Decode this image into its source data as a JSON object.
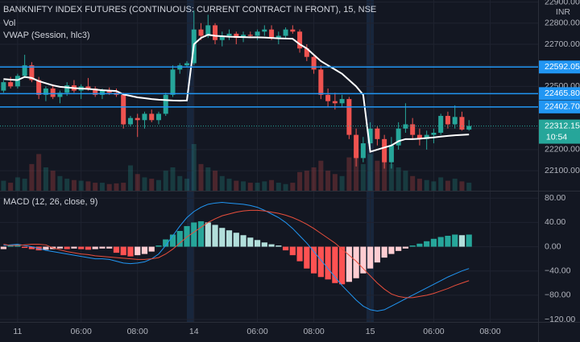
{
  "chart_data": [
    {
      "type": "candlestick",
      "title": "BANKNIFTY INDEX FUTURES (CONTINUOUS: CURRENT CONTRACT IN FRONT), 15, NSE",
      "volume_label": "Vol",
      "currency": "INR",
      "up_color": "#26a69a",
      "down_color": "#ef5350",
      "open": [
        22480,
        22520,
        22500,
        22550,
        22600,
        22530,
        22460,
        22490,
        22450,
        22470,
        22505,
        22480,
        22500,
        22490,
        22460,
        22480,
        22470,
        22460,
        22320,
        22350,
        22340,
        22370,
        22340,
        22370,
        22460,
        22580,
        22600,
        22610,
        22770,
        22740,
        22790,
        22720,
        22740,
        22750,
        22730,
        22745,
        22740,
        22760,
        22770,
        22730,
        22740,
        22770,
        22760,
        22680,
        22640,
        22580,
        22460,
        22430,
        22420,
        22440,
        22270,
        22160,
        22230,
        22300,
        22250,
        22140,
        22220,
        22300,
        22320,
        22270,
        22250,
        22270,
        22280,
        22360,
        22320,
        22355,
        22295
      ],
      "high": [
        22530,
        22545,
        22560,
        22650,
        22615,
        22545,
        22500,
        22510,
        22480,
        22520,
        22530,
        22510,
        22540,
        22500,
        22490,
        22495,
        22490,
        22470,
        22360,
        22370,
        22380,
        22390,
        22380,
        22470,
        22600,
        22610,
        22620,
        22860,
        22800,
        22840,
        22800,
        22760,
        22770,
        22760,
        22760,
        22760,
        22770,
        22790,
        22790,
        22760,
        22780,
        22790,
        22770,
        22700,
        22650,
        22600,
        22490,
        22470,
        22460,
        22450,
        22300,
        22260,
        22330,
        22310,
        22270,
        22260,
        22330,
        22420,
        22350,
        22300,
        22290,
        22300,
        22370,
        22380,
        22410,
        22380,
        22340
      ],
      "low": [
        22470,
        22490,
        22490,
        22540,
        22520,
        22440,
        22430,
        22440,
        22420,
        22455,
        22470,
        22440,
        22480,
        22450,
        22440,
        22460,
        22450,
        22300,
        22310,
        22260,
        22300,
        22330,
        22320,
        22360,
        22450,
        22560,
        22590,
        22600,
        22720,
        22730,
        22700,
        22690,
        22720,
        22700,
        22710,
        22730,
        22720,
        22740,
        22720,
        22700,
        22730,
        22750,
        22660,
        22620,
        22560,
        22440,
        22400,
        22390,
        22400,
        22250,
        22120,
        22140,
        22200,
        22220,
        22110,
        22110,
        22200,
        22280,
        22250,
        22220,
        22200,
        22230,
        22270,
        22300,
        22300,
        22290,
        22290
      ],
      "close": [
        22520,
        22500,
        22550,
        22600,
        22530,
        22460,
        22490,
        22450,
        22470,
        22505,
        22480,
        22500,
        22490,
        22460,
        22480,
        22470,
        22460,
        22320,
        22350,
        22340,
        22370,
        22340,
        22370,
        22460,
        22580,
        22600,
        22610,
        22770,
        22740,
        22790,
        22720,
        22740,
        22750,
        22730,
        22745,
        22740,
        22760,
        22770,
        22730,
        22740,
        22770,
        22760,
        22680,
        22640,
        22580,
        22460,
        22430,
        22420,
        22440,
        22270,
        22160,
        22230,
        22300,
        22250,
        22140,
        22220,
        22300,
        22320,
        22270,
        22250,
        22270,
        22280,
        22360,
        22320,
        22355,
        22295,
        22312.15
      ],
      "volume": [
        15,
        12,
        20,
        18,
        40,
        55,
        35,
        30,
        22,
        18,
        16,
        15,
        14,
        12,
        12,
        10,
        11,
        12,
        38,
        25,
        20,
        18,
        16,
        30,
        35,
        22,
        18,
        70,
        40,
        35,
        30,
        22,
        18,
        15,
        14,
        12,
        12,
        14,
        16,
        12,
        10,
        12,
        28,
        30,
        35,
        45,
        30,
        25,
        22,
        50,
        60,
        40,
        55,
        45,
        65,
        40,
        35,
        30,
        22,
        18,
        16,
        14,
        20,
        15,
        18,
        14,
        12
      ],
      "vwap": {
        "name": "VWAP (Session, hlc3)",
        "color": "#ffffff",
        "values": [
          22535,
          22532,
          22530,
          22545,
          22540,
          22525,
          22515,
          22505,
          22498,
          22495,
          22492,
          22490,
          22488,
          22485,
          22482,
          22480,
          22478,
          22462,
          22455,
          22448,
          22444,
          22440,
          22437,
          22435,
          22433,
          22432,
          22433,
          22700,
          22730,
          22745,
          22740,
          22738,
          22736,
          22735,
          22734,
          22733,
          22733,
          22732,
          22730,
          22728,
          22727,
          22726,
          22700,
          22680,
          22650,
          22620,
          22600,
          22580,
          22560,
          22530,
          22500,
          22460,
          22190,
          22200,
          22210,
          22220,
          22240,
          22250,
          22250,
          22252,
          22255,
          22258,
          22262,
          22265,
          22268,
          22270,
          22272
        ]
      },
      "hlines": {
        "color": "#2196f3",
        "values": [
          22592.05,
          {
            "value": 22465.8,
            "label": "22465.80"
          },
          {
            "value": 22402.7,
            "label": "22402.70"
          }
        ]
      },
      "last_price": 22312.15,
      "countdown": "10:54",
      "xlim": [
        -0.5,
        75.8
      ],
      "ylim": [
        22005,
        22910
      ],
      "yticks": [
        {
          "value": 22900,
          "label": "22900.00"
        },
        {
          "value": 22800,
          "label": "22800.00"
        },
        {
          "value": 22700,
          "label": "22700.00"
        },
        {
          "value": 22600,
          "label": "22600.00"
        },
        {
          "value": 22500,
          "label": "22500.00"
        },
        {
          "value": 22400,
          "label": "22400.00"
        },
        {
          "value": 22300,
          "label": "22300.00"
        },
        {
          "value": 22200,
          "label": "22200.00"
        },
        {
          "value": 22100,
          "label": "22100.00"
        }
      ],
      "grid": true
    },
    {
      "type": "macd",
      "title": "MACD (12, 26, close, 9)",
      "histogram": [
        -4,
        3,
        4,
        -2,
        -4,
        -6,
        -5,
        -4,
        -3,
        -4,
        -3,
        -4,
        -5,
        -4,
        -3,
        -3,
        -10,
        -14,
        -16,
        -14,
        -12,
        -8,
        2,
        12,
        20,
        26,
        34,
        40,
        42,
        40,
        36,
        31,
        27,
        23,
        19,
        15,
        11,
        7,
        4,
        2,
        -6,
        -14,
        -24,
        -36,
        -44,
        -50,
        -54,
        -60,
        -62,
        -58,
        -52,
        -44,
        -36,
        -26,
        -18,
        -12,
        -7,
        -3,
        2,
        5,
        9,
        13,
        16,
        18,
        20,
        19,
        20
      ],
      "histogram_colors": {
        "rising_positive": "#26a69a",
        "falling_positive": "#b2dfdb",
        "falling_negative": "#ff5252",
        "rising_negative": "#ffcdd2"
      },
      "series": [
        {
          "name": "MACD",
          "color": "#2196f3",
          "values": [
            2,
            3,
            4,
            2,
            0,
            -3,
            -6,
            -8,
            -10,
            -12,
            -14,
            -16,
            -18,
            -20,
            -20,
            -21,
            -24,
            -27,
            -28,
            -27,
            -25,
            -20,
            -12,
            2,
            18,
            34,
            48,
            58,
            65,
            70,
            72,
            73,
            72,
            71,
            70,
            68,
            65,
            60,
            54,
            48,
            40,
            30,
            18,
            6,
            -8,
            -22,
            -36,
            -50,
            -64,
            -76,
            -88,
            -98,
            -104,
            -106,
            -104,
            -98,
            -92,
            -86,
            -80,
            -74,
            -68,
            -62,
            -56,
            -50,
            -45,
            -40,
            -36
          ]
        },
        {
          "name": "Signal",
          "color": "#e84e3c",
          "values": [
            4,
            2,
            2,
            3,
            4,
            4,
            3,
            -2,
            -5,
            -8,
            -10,
            -12,
            -13,
            -15,
            -16,
            -17,
            -18,
            -19,
            -20,
            -21,
            -21,
            -20,
            -18,
            -12,
            -4,
            6,
            16,
            24,
            32,
            40,
            46,
            51,
            54,
            57,
            59,
            60,
            60,
            59,
            57,
            55,
            52,
            48,
            43,
            37,
            30,
            22,
            14,
            6,
            -4,
            -14,
            -24,
            -36,
            -48,
            -60,
            -70,
            -78,
            -82,
            -84,
            -84,
            -82,
            -80,
            -77,
            -73,
            -69,
            -64,
            -60,
            -56
          ]
        }
      ],
      "xlim": [
        -0.5,
        75.8
      ],
      "ylim": [
        -124,
        91
      ],
      "yticks": [
        {
          "value": 80,
          "label": "80.00"
        },
        {
          "value": 40,
          "label": "40.00"
        },
        {
          "value": 0,
          "label": "0.00"
        },
        {
          "value": -40,
          "label": "−40.00"
        },
        {
          "value": -80,
          "label": "−80.00"
        },
        {
          "value": -120,
          "label": "−120.00"
        }
      ],
      "xticks": [
        {
          "value": 2,
          "label": "11"
        },
        {
          "value": 11,
          "label": "06:00"
        },
        {
          "value": 19,
          "label": "08:00"
        },
        {
          "value": 27,
          "label": "14"
        },
        {
          "value": 36,
          "label": "06:00"
        },
        {
          "value": 44,
          "label": "08:00"
        },
        {
          "value": 52,
          "label": "15"
        },
        {
          "value": 61,
          "label": "06:00"
        },
        {
          "value": 69,
          "label": "08:00"
        }
      ],
      "grid": true
    }
  ]
}
